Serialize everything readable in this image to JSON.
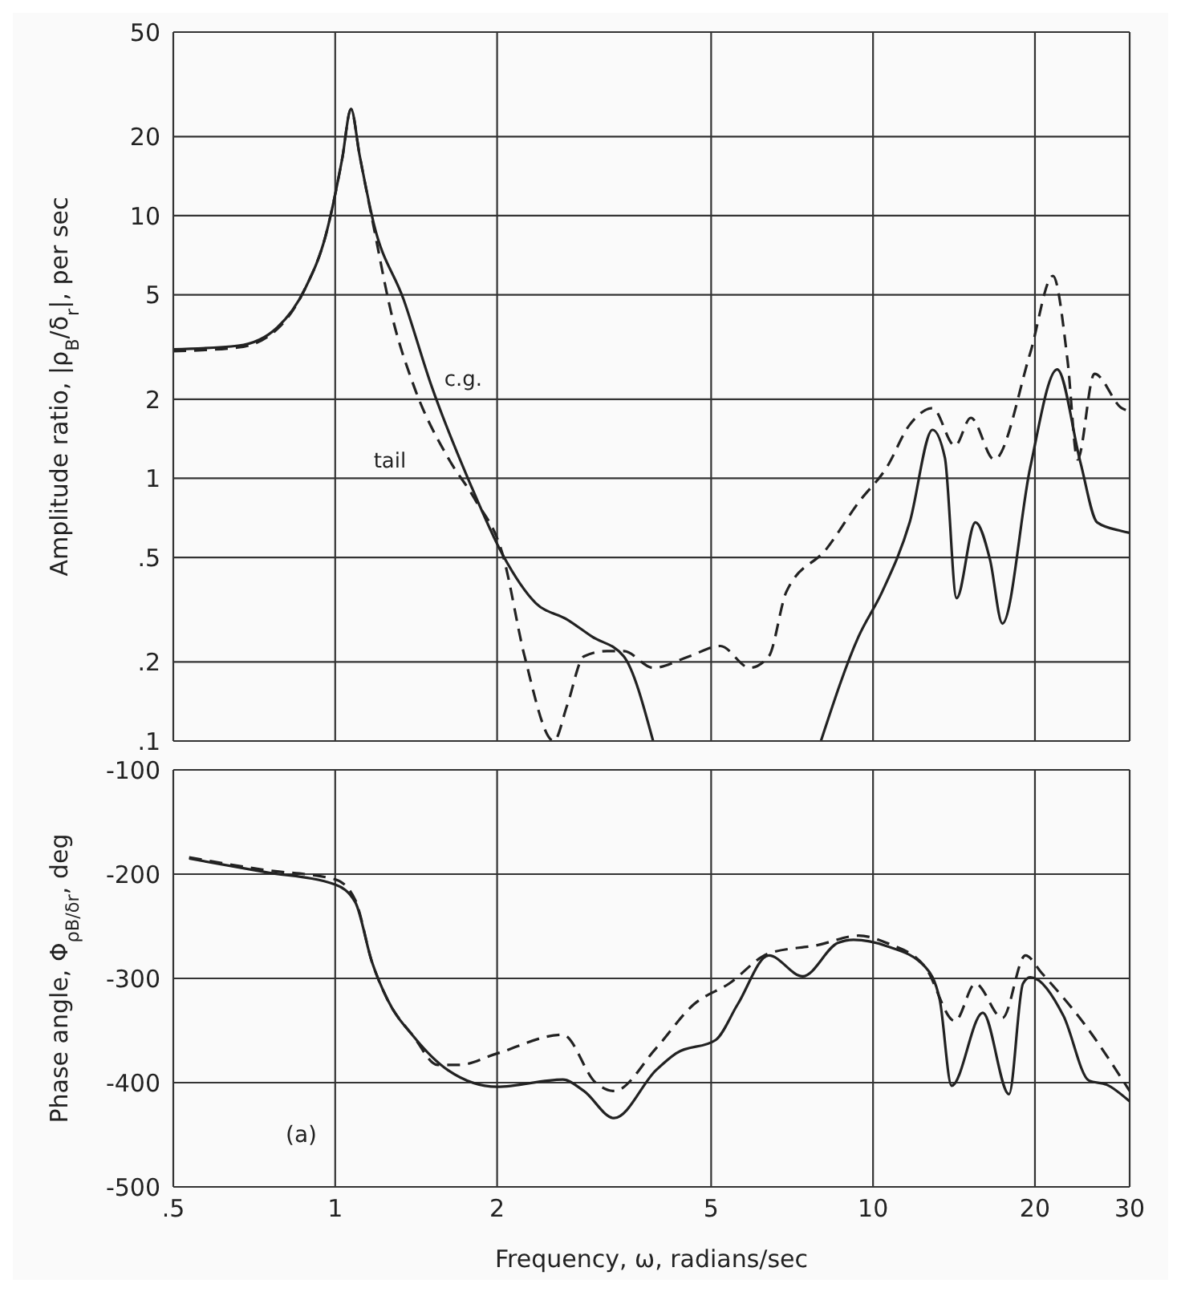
{
  "chart_data": [
    {
      "type": "line",
      "ylabel": "Amplitude ratio, |ρ$_{B}$/δ$_{r}$|, per sec",
      "log": "xy",
      "grid": true,
      "legend": false,
      "tick_labels": "y",
      "xlim": [
        0.5,
        30
      ],
      "xticks": [
        0.5,
        1,
        2,
        5,
        10,
        20,
        30
      ],
      "ylim": [
        0.1,
        50
      ],
      "yticks": [
        {
          "value": 0.1,
          "label": ".1"
        },
        {
          "value": 0.2,
          "label": ".2"
        },
        {
          "value": 0.5,
          "label": ".5"
        },
        1,
        2,
        5,
        10,
        20,
        50
      ],
      "series": [
        {
          "name": "c.g.",
          "color": "#222222",
          "line_style": "solid",
          "x": [
            0.5,
            0.66,
            0.78,
            0.88,
            0.96,
            1.03,
            1.07,
            1.11,
            1.18,
            1.34,
            1.51,
            1.78,
            2.05,
            2.36,
            2.7,
            3.0,
            3.44,
            3.9,
            5.5,
            8.0,
            9.4,
            10.4,
            11.7,
            12.9,
            13.6,
            14.3,
            15.5,
            16.5,
            17.4,
            19.6,
            22.0,
            24.3,
            26.1,
            29,
            30
          ],
          "values": [
            3.1,
            3.2,
            3.75,
            5.3,
            8.4,
            16.4,
            25.5,
            17,
            9.3,
            4.8,
            2.25,
            0.96,
            0.51,
            0.335,
            0.29,
            0.25,
            0.21,
            0.1,
            null,
            0.1,
            0.25,
            0.37,
            0.68,
            1.53,
            1.2,
            0.35,
            0.68,
            0.49,
            0.28,
            1.1,
            2.6,
            1.15,
            0.68,
            0.63,
            0.62
          ]
        },
        {
          "name": "tail",
          "color": "#222222",
          "line_style": "dashed",
          "x": [
            0.5,
            0.66,
            0.78,
            0.88,
            0.96,
            1.03,
            1.07,
            1.11,
            1.18,
            1.27,
            1.4,
            1.62,
            1.82,
            2.05,
            2.25,
            2.55,
            2.7,
            2.9,
            3.2,
            3.44,
            3.9,
            4.55,
            5.2,
            5.9,
            6.4,
            6.9,
            8.2,
            9.4,
            10.6,
            11.7,
            12.9,
            14.2,
            15.2,
            16.8,
            19.6,
            21.6,
            23,
            24,
            25.8,
            29,
            30
          ],
          "values": [
            3.05,
            3.15,
            3.7,
            5.3,
            8.4,
            16.4,
            25.5,
            17,
            9.0,
            4.3,
            2.25,
            1.2,
            0.83,
            0.51,
            0.21,
            0.1,
            0.137,
            0.21,
            0.22,
            0.22,
            0.19,
            0.21,
            0.23,
            0.19,
            0.21,
            0.37,
            0.54,
            0.81,
            1.1,
            1.6,
            1.85,
            1.33,
            1.7,
            1.18,
            3.0,
            5.9,
            2.8,
            1.18,
            2.5,
            1.85,
            1.8
          ]
        }
      ]
    },
    {
      "type": "line",
      "xlabel": "Frequency, ω, radians/sec",
      "ylabel": "Phase angle, Φ$_{ρB/δr}$, deg",
      "log": "x",
      "grid": true,
      "legend": false,
      "xlim": [
        0.5,
        30
      ],
      "xticks": [
        {
          "value": 0.5,
          "label": ".5"
        },
        1,
        2,
        5,
        10,
        20,
        30
      ],
      "ylim": [
        -500,
        -100
      ],
      "yticks": [
        -500,
        -400,
        -300,
        -200,
        -100
      ],
      "annotations": [
        "(a)"
      ],
      "series": [
        {
          "color": "#222222",
          "line_style": "solid",
          "x": [
            0.535,
            0.74,
            1.0,
            1.09,
            1.17,
            1.25,
            1.4,
            1.62,
            2.0,
            2.65,
            2.9,
            3.3,
            3.95,
            4.3,
            5.1,
            5.6,
            6.4,
            7.4,
            8.6,
            9.2,
            10.6,
            12.5,
            13.3,
            14.0,
            16.0,
            17.9,
            19.0,
            19.6,
            22.6,
            25.2,
            27.2,
            30
          ],
          "values": [
            -185,
            -198,
            -210,
            -227,
            -284,
            -320,
            -356,
            -388,
            -404,
            -397,
            -408,
            -434,
            -388,
            -372,
            -359,
            -325,
            -278,
            -298,
            -266,
            -263,
            -269,
            -289,
            -320,
            -403,
            -333,
            -411,
            -305,
            -299,
            -336,
            -398,
            -402,
            -418
          ]
        },
        {
          "color": "#222222",
          "line_style": "dashed",
          "x": [
            0.535,
            0.74,
            1.0,
            1.09,
            1.17,
            1.25,
            1.4,
            1.55,
            1.7,
            2.0,
            2.65,
            3.05,
            3.3,
            3.95,
            4.64,
            5.4,
            6.4,
            7.9,
            9.4,
            10.6,
            12.5,
            14.2,
            15.5,
            17.4,
            19.2,
            20.6,
            24.9,
            30
          ],
          "values": [
            -184,
            -196,
            -205,
            -225,
            -284,
            -320,
            -356,
            -383,
            -383,
            -372,
            -354,
            -400,
            -408,
            -367,
            -325,
            -305,
            -276,
            -268,
            -259,
            -266,
            -289,
            -341,
            -305,
            -338,
            -278,
            -295,
            -346,
            -408
          ]
        }
      ]
    }
  ]
}
